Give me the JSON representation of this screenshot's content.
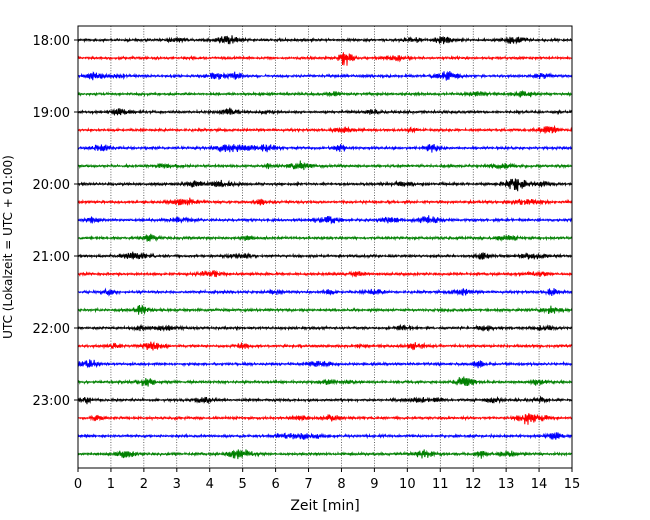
{
  "chart_data": {
    "type": "line",
    "subtype": "helicorder",
    "xlabel": "Zeit  [min]",
    "ylabel": "UTC (Lokalzeit = UTC + 01:00)",
    "xlim": [
      0,
      15
    ],
    "x_ticks": [
      "0",
      "1",
      "2",
      "3",
      "4",
      "5",
      "6",
      "7",
      "8",
      "9",
      "10",
      "11",
      "12",
      "13",
      "14",
      "15"
    ],
    "y_ticks": [
      "18:00",
      "19:00",
      "20:00",
      "21:00",
      "22:00",
      "23:00"
    ],
    "grid": "vertical dotted",
    "trace_colors": [
      "#000000",
      "#ff0000",
      "#0000ff",
      "#008000"
    ],
    "traces": [
      {
        "start": "18:00",
        "color": "#000000"
      },
      {
        "start": "18:15",
        "color": "#ff0000"
      },
      {
        "start": "18:30",
        "color": "#0000ff"
      },
      {
        "start": "18:45",
        "color": "#008000"
      },
      {
        "start": "19:00",
        "color": "#000000"
      },
      {
        "start": "19:15",
        "color": "#ff0000"
      },
      {
        "start": "19:30",
        "color": "#0000ff"
      },
      {
        "start": "19:45",
        "color": "#008000"
      },
      {
        "start": "20:00",
        "color": "#000000"
      },
      {
        "start": "20:15",
        "color": "#ff0000"
      },
      {
        "start": "20:30",
        "color": "#0000ff"
      },
      {
        "start": "20:45",
        "color": "#008000"
      },
      {
        "start": "21:00",
        "color": "#000000"
      },
      {
        "start": "21:15",
        "color": "#ff0000"
      },
      {
        "start": "21:30",
        "color": "#0000ff"
      },
      {
        "start": "21:45",
        "color": "#008000"
      },
      {
        "start": "22:00",
        "color": "#000000"
      },
      {
        "start": "22:15",
        "color": "#ff0000"
      },
      {
        "start": "22:30",
        "color": "#0000ff"
      },
      {
        "start": "22:45",
        "color": "#008000"
      },
      {
        "start": "23:00",
        "color": "#000000"
      },
      {
        "start": "23:15",
        "color": "#ff0000"
      },
      {
        "start": "23:30",
        "color": "#0000ff"
      },
      {
        "start": "23:45",
        "color": "#008000"
      }
    ]
  }
}
